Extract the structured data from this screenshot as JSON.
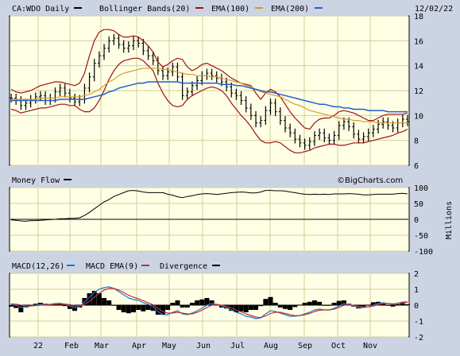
{
  "header": {
    "symbol": "CA:WDO Daily",
    "bb_label": "Bollinger Bands(20)",
    "ema100_label": "EMA(100)",
    "ema200_label": "EMA(200)",
    "date": "12/02/22"
  },
  "watermark": "©BigCharts.com",
  "colors": {
    "background": "#ccd4e4",
    "plot_bg": "#ffffe6",
    "grid": "#cfcf9a",
    "price": "#000000",
    "bollinger": "#a01010",
    "ema100": "#d89a2a",
    "ema200": "#1f5fd0",
    "macd": "#1f77d0",
    "macd_ema": "#c03030",
    "divergence": "#000000"
  },
  "chart_data": [
    {
      "type": "line",
      "panel": "price",
      "x_tick_labels": [
        "22",
        "Feb",
        "Mar",
        "Apr",
        "May",
        "Jun",
        "Jul",
        "Aug",
        "Sep",
        "Oct",
        "Nov"
      ],
      "y_ticks": [
        6,
        8,
        10,
        12,
        14,
        16,
        18
      ],
      "ylim": [
        6,
        18
      ],
      "grid": true,
      "series": [
        {
          "name": "CA:WDO Daily",
          "style": "ohlc-bars",
          "values": [
            11.4,
            11.2,
            10.8,
            11.0,
            11.3,
            11.5,
            11.6,
            11.2,
            11.4,
            11.9,
            12.2,
            11.8,
            11.4,
            11.1,
            11.3,
            12.2,
            13.1,
            14.2,
            14.8,
            15.4,
            16.0,
            16.2,
            15.7,
            15.4,
            15.6,
            16.0,
            15.8,
            15.2,
            14.8,
            14.4,
            13.6,
            13.2,
            13.5,
            13.9,
            13.1,
            11.6,
            11.9,
            12.4,
            12.8,
            13.2,
            13.4,
            13.2,
            13.0,
            12.7,
            12.3,
            11.8,
            11.6,
            11.2,
            10.6,
            10.0,
            9.4,
            9.6,
            10.4,
            11.0,
            10.3,
            9.6,
            9.0,
            8.6,
            8.1,
            7.8,
            7.6,
            7.9,
            8.4,
            8.6,
            8.2,
            8.0,
            8.4,
            9.2,
            9.5,
            9.1,
            8.5,
            8.1,
            8.3,
            8.6,
            8.9,
            9.3,
            9.5,
            9.2,
            9.0,
            9.4,
            9.7,
            9.5
          ]
        },
        {
          "name": "Bollinger Bands(20) upper",
          "values": [
            12.1,
            11.9,
            11.8,
            11.9,
            12.0,
            12.2,
            12.4,
            12.5,
            12.6,
            12.7,
            12.7,
            12.6,
            12.5,
            12.4,
            12.6,
            13.4,
            14.8,
            16.0,
            16.7,
            16.9,
            16.9,
            16.8,
            16.5,
            16.3,
            16.3,
            16.4,
            16.3,
            16.0,
            15.6,
            15.1,
            14.3,
            13.9,
            14.1,
            14.4,
            14.6,
            14.5,
            13.9,
            13.6,
            13.8,
            14.1,
            14.2,
            14.0,
            13.8,
            13.6,
            13.3,
            13.0,
            12.8,
            12.6,
            12.5,
            12.4,
            11.8,
            11.3,
            11.8,
            12.1,
            11.9,
            11.5,
            10.9,
            10.3,
            9.8,
            9.4,
            9.0,
            8.9,
            9.4,
            9.7,
            9.8,
            9.8,
            10.0,
            10.3,
            10.4,
            10.3,
            10.2,
            10.0,
            9.8,
            9.6,
            9.6,
            9.8,
            10.0,
            10.1,
            10.1,
            10.1,
            10.1,
            10.2
          ]
        },
        {
          "name": "Bollinger Bands(20) lower",
          "values": [
            10.5,
            10.4,
            10.2,
            10.3,
            10.4,
            10.5,
            10.6,
            10.6,
            10.7,
            10.8,
            10.9,
            10.9,
            10.8,
            10.8,
            10.5,
            10.3,
            10.3,
            10.6,
            11.2,
            12.0,
            12.9,
            13.6,
            14.1,
            14.4,
            14.5,
            14.6,
            14.6,
            14.4,
            14.0,
            13.6,
            12.6,
            11.8,
            11.2,
            10.8,
            10.7,
            10.8,
            11.3,
            11.6,
            11.8,
            12.0,
            12.2,
            12.3,
            12.2,
            12.0,
            11.6,
            11.0,
            10.5,
            10.0,
            9.6,
            9.1,
            8.5,
            8.0,
            7.8,
            7.8,
            7.9,
            7.8,
            7.5,
            7.2,
            7.0,
            7.0,
            7.1,
            7.2,
            7.4,
            7.5,
            7.6,
            7.7,
            7.7,
            7.6,
            7.6,
            7.7,
            7.8,
            7.8,
            7.8,
            7.9,
            8.0,
            8.1,
            8.2,
            8.3,
            8.4,
            8.6,
            8.7,
            8.9
          ]
        },
        {
          "name": "EMA(100)",
          "values": [
            11.3,
            11.3,
            11.3,
            11.3,
            11.3,
            11.3,
            11.4,
            11.4,
            11.4,
            11.4,
            11.5,
            11.5,
            11.5,
            11.5,
            11.5,
            11.6,
            11.7,
            11.9,
            12.1,
            12.4,
            12.7,
            12.9,
            13.2,
            13.4,
            13.5,
            13.6,
            13.7,
            13.8,
            13.8,
            13.8,
            13.8,
            13.7,
            13.7,
            13.6,
            13.5,
            13.4,
            13.3,
            13.3,
            13.2,
            13.2,
            13.2,
            13.1,
            13.1,
            13.0,
            12.9,
            12.8,
            12.7,
            12.6,
            12.4,
            12.3,
            12.1,
            11.9,
            11.8,
            11.7,
            11.6,
            11.5,
            11.3,
            11.1,
            10.9,
            10.8,
            10.6,
            10.4,
            10.3,
            10.2,
            10.1,
            10.0,
            9.9,
            9.8,
            9.7,
            9.7,
            9.6,
            9.6,
            9.5,
            9.5,
            9.5,
            9.4,
            9.4,
            9.4,
            9.4,
            9.4,
            9.4,
            9.4
          ]
        },
        {
          "name": "EMA(200)",
          "values": [
            11.2,
            11.2,
            11.2,
            11.2,
            11.2,
            11.2,
            11.2,
            11.2,
            11.2,
            11.2,
            11.3,
            11.3,
            11.3,
            11.3,
            11.3,
            11.3,
            11.4,
            11.5,
            11.6,
            11.7,
            11.9,
            12.0,
            12.2,
            12.3,
            12.4,
            12.5,
            12.6,
            12.6,
            12.7,
            12.7,
            12.7,
            12.7,
            12.7,
            12.7,
            12.7,
            12.6,
            12.6,
            12.6,
            12.6,
            12.6,
            12.6,
            12.6,
            12.6,
            12.5,
            12.5,
            12.5,
            12.4,
            12.4,
            12.3,
            12.2,
            12.1,
            12.0,
            11.9,
            11.9,
            11.8,
            11.7,
            11.6,
            11.5,
            11.4,
            11.3,
            11.2,
            11.1,
            11.0,
            10.9,
            10.9,
            10.8,
            10.7,
            10.7,
            10.6,
            10.6,
            10.5,
            10.5,
            10.5,
            10.4,
            10.4,
            10.4,
            10.4,
            10.3,
            10.3,
            10.3,
            10.3,
            10.3
          ]
        }
      ]
    },
    {
      "type": "line",
      "panel": "money-flow",
      "title": "Money Flow",
      "ylabel": "Millions",
      "y_ticks": [
        -100,
        -50,
        0,
        50,
        100
      ],
      "ylim": [
        -100,
        100
      ],
      "grid": true,
      "series": [
        {
          "name": "Money Flow",
          "values": [
            -2,
            -3,
            -5,
            -6,
            -4,
            -4,
            -3,
            -2,
            -1,
            0,
            2,
            2,
            3,
            3,
            5,
            12,
            22,
            33,
            44,
            55,
            62,
            72,
            78,
            84,
            90,
            91,
            89,
            86,
            84,
            84,
            84,
            84,
            79,
            76,
            71,
            68,
            72,
            74,
            78,
            80,
            81,
            80,
            78,
            80,
            82,
            84,
            85,
            86,
            85,
            83,
            83,
            86,
            91,
            91,
            90,
            90,
            89,
            86,
            84,
            81,
            79,
            78,
            79,
            78,
            79,
            78,
            80,
            80,
            80,
            81,
            80,
            79,
            77,
            77,
            78,
            79,
            79,
            79,
            79,
            81,
            82,
            80
          ]
        }
      ]
    },
    {
      "type": "line",
      "panel": "macd",
      "y_ticks": [
        -2,
        -1,
        0,
        1,
        2
      ],
      "ylim": [
        -2,
        2
      ],
      "grid": true,
      "series": [
        {
          "name": "MACD(12,26)",
          "values": [
            0.05,
            0.0,
            -0.15,
            -0.1,
            -0.05,
            0.0,
            0.05,
            0.05,
            0.05,
            0.1,
            0.12,
            0.05,
            -0.05,
            -0.15,
            -0.1,
            0.2,
            0.5,
            0.8,
            1.0,
            1.1,
            1.15,
            1.05,
            0.85,
            0.65,
            0.45,
            0.35,
            0.3,
            0.15,
            0.05,
            -0.1,
            -0.4,
            -0.6,
            -0.6,
            -0.45,
            -0.35,
            -0.55,
            -0.6,
            -0.5,
            -0.35,
            -0.2,
            0.0,
            0.1,
            0.05,
            -0.05,
            -0.15,
            -0.3,
            -0.45,
            -0.55,
            -0.7,
            -0.75,
            -0.85,
            -0.8,
            -0.55,
            -0.35,
            -0.4,
            -0.5,
            -0.6,
            -0.7,
            -0.7,
            -0.65,
            -0.55,
            -0.45,
            -0.3,
            -0.25,
            -0.3,
            -0.3,
            -0.2,
            -0.05,
            0.1,
            0.05,
            -0.05,
            -0.15,
            -0.15,
            -0.1,
            0.0,
            0.1,
            0.15,
            0.1,
            0.05,
            0.12,
            0.2,
            0.2
          ]
        },
        {
          "name": "MACD EMA(9)",
          "values": [
            0.08,
            0.06,
            0.0,
            -0.05,
            -0.05,
            -0.03,
            0.0,
            0.02,
            0.03,
            0.06,
            0.08,
            0.07,
            0.03,
            -0.03,
            -0.05,
            0.05,
            0.25,
            0.5,
            0.75,
            0.95,
            1.05,
            1.05,
            0.95,
            0.8,
            0.62,
            0.5,
            0.4,
            0.28,
            0.15,
            0.02,
            -0.2,
            -0.4,
            -0.5,
            -0.5,
            -0.45,
            -0.5,
            -0.55,
            -0.55,
            -0.45,
            -0.32,
            -0.15,
            0.0,
            0.03,
            0.0,
            -0.08,
            -0.18,
            -0.3,
            -0.42,
            -0.55,
            -0.65,
            -0.75,
            -0.78,
            -0.68,
            -0.52,
            -0.45,
            -0.45,
            -0.52,
            -0.6,
            -0.66,
            -0.66,
            -0.6,
            -0.52,
            -0.4,
            -0.32,
            -0.3,
            -0.3,
            -0.25,
            -0.14,
            0.0,
            0.02,
            -0.02,
            -0.08,
            -0.12,
            -0.11,
            -0.06,
            0.03,
            0.1,
            0.1,
            0.08,
            0.1,
            0.16,
            0.18
          ]
        }
      ]
    }
  ]
}
